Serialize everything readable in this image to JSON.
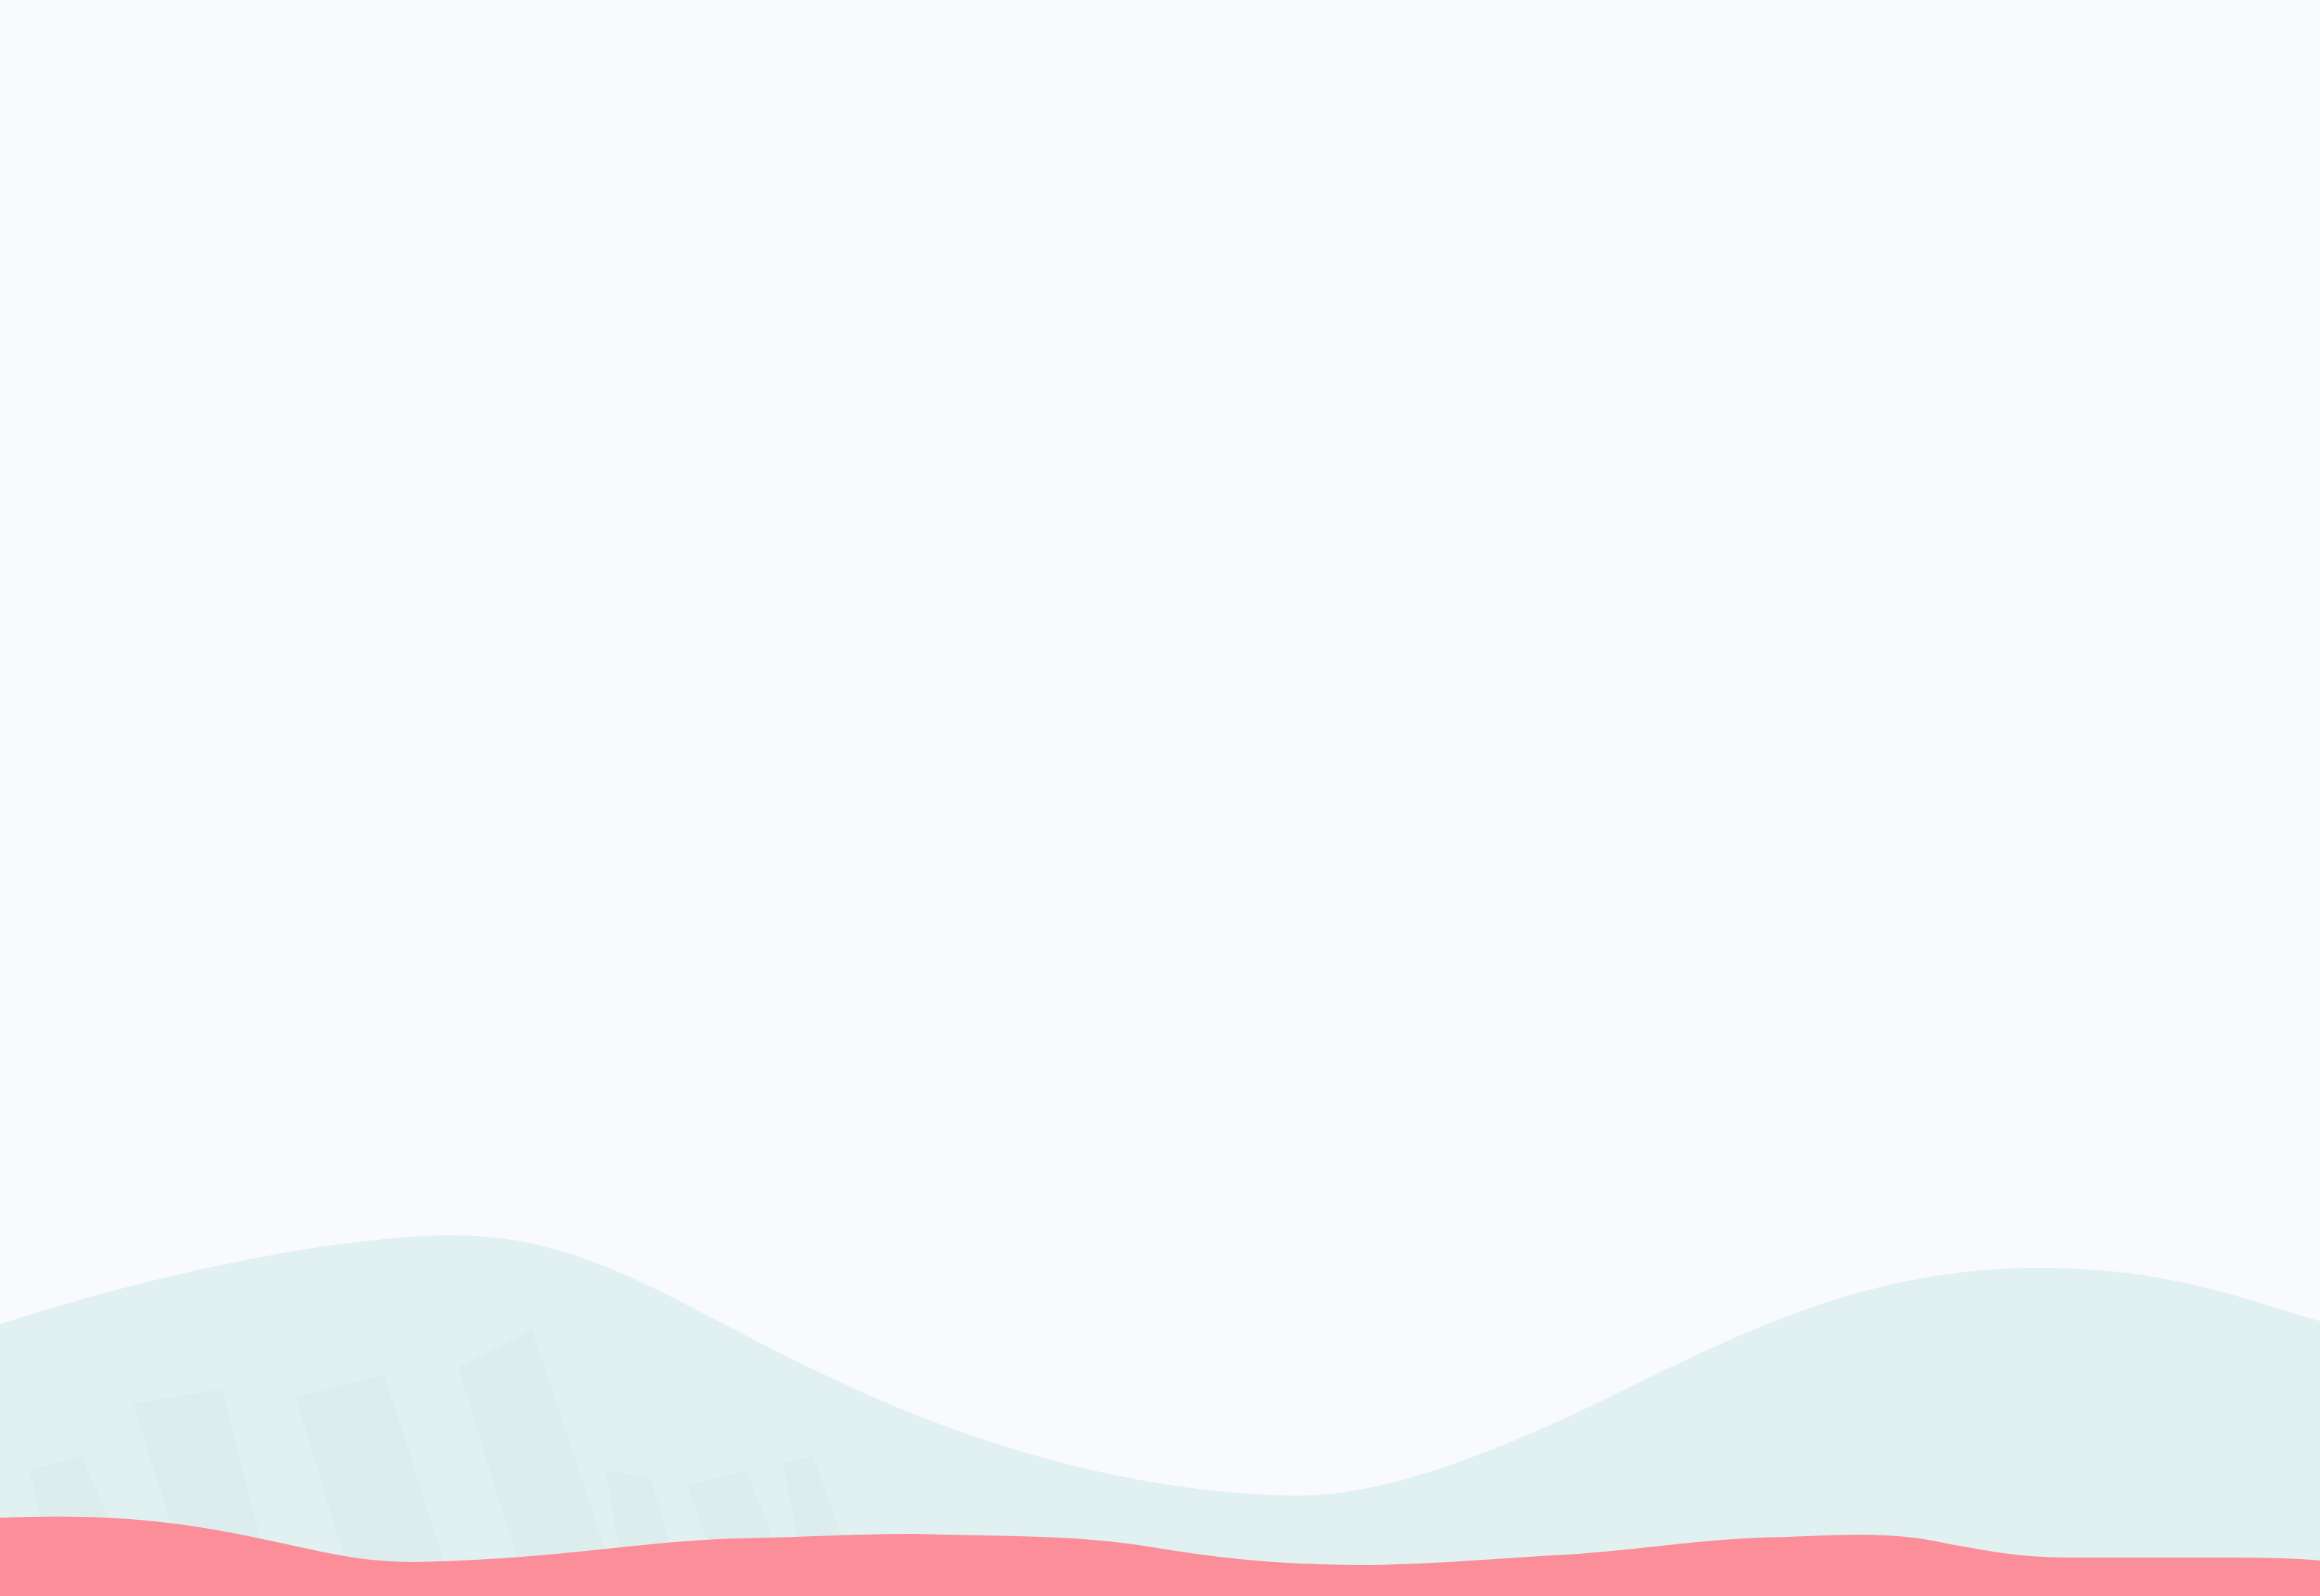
{
  "scene": {
    "background_color": "#f9fafe",
    "hill_color": "#e1f0f1",
    "hill_texture_color": "#d8e9ea",
    "ground_color": "#fc8e99"
  }
}
